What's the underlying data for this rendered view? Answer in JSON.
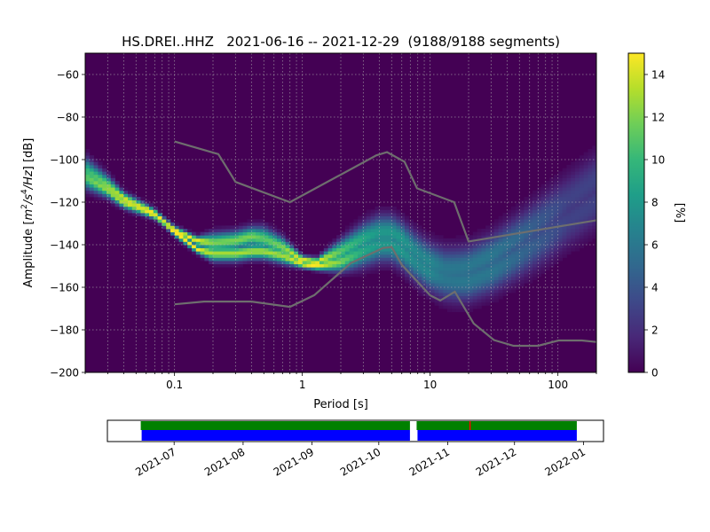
{
  "chart_data": [
    {
      "type": "heatmap",
      "title": "HS.DREI..HHZ   2021-06-16 -- 2021-12-29  (9188/9188 segments)",
      "xlabel": "Period [s]",
      "ylabel": "Amplitude [m²/s⁴/Hz] [dB]",
      "ylabel_parts": {
        "pre": "Amplitude [",
        "m": "m",
        "sup2": "2",
        "mid": "/s",
        "sup4": "4",
        "hz": "/Hz",
        "post": "] [dB]"
      },
      "x_scale": "log",
      "xlim": [
        0.02,
        200
      ],
      "ylim": [
        -200,
        -50
      ],
      "x_ticks": [
        {
          "value": 0.1,
          "label": "0.1"
        },
        {
          "value": 1,
          "label": "1"
        },
        {
          "value": 10,
          "label": "10"
        },
        {
          "value": 100,
          "label": "100"
        }
      ],
      "y_ticks": [
        {
          "value": -60,
          "label": "−60"
        },
        {
          "value": -80,
          "label": "−80"
        },
        {
          "value": -100,
          "label": "−100"
        },
        {
          "value": -120,
          "label": "−120"
        },
        {
          "value": -140,
          "label": "−140"
        },
        {
          "value": -160,
          "label": "−160"
        },
        {
          "value": -180,
          "label": "−180"
        },
        {
          "value": -200,
          "label": "−200"
        }
      ],
      "grid": true,
      "colorbar": {
        "label": "[%]",
        "range": [
          0,
          15
        ],
        "ticks": [
          {
            "value": 0,
            "label": "0"
          },
          {
            "value": 2,
            "label": "2"
          },
          {
            "value": 4,
            "label": "4"
          },
          {
            "value": 6,
            "label": "6"
          },
          {
            "value": 8,
            "label": "8"
          },
          {
            "value": 10,
            "label": "10"
          },
          {
            "value": 12,
            "label": "12"
          },
          {
            "value": 14,
            "label": "14"
          }
        ],
        "colormap": [
          "#440154",
          "#482878",
          "#3e4989",
          "#31688e",
          "#26828e",
          "#1f9e89",
          "#35b779",
          "#6ece58",
          "#b5de2b",
          "#fde725"
        ]
      },
      "ridges": [
        {
          "period": [
            0.02,
            0.03,
            0.04,
            0.05,
            0.07,
            0.1,
            0.15,
            0.2,
            0.3,
            0.4,
            0.5,
            0.7,
            1.0,
            1.3,
            2.0,
            3.0,
            4.0,
            5.0,
            6.0,
            8.0,
            10.0,
            13.0,
            16.0,
            20.0,
            30.0,
            50.0,
            80.0,
            120.0,
            200.0
          ],
          "amplitude": [
            -108,
            -114,
            -120,
            -122,
            -126,
            -133,
            -138,
            -139,
            -138,
            -136,
            -137,
            -141,
            -147,
            -148,
            -143,
            -137,
            -134,
            -134,
            -137,
            -144,
            -148,
            -151,
            -151,
            -150,
            -145,
            -136,
            -127,
            -119,
            -109
          ],
          "peak_percent": [
            11,
            13,
            14,
            14,
            15,
            15,
            15,
            12,
            12,
            12,
            11,
            12,
            15,
            15,
            11,
            9,
            8,
            8,
            8,
            7,
            7,
            6,
            6,
            6,
            6,
            5,
            4,
            3,
            3
          ]
        },
        {
          "period": [
            0.02,
            0.03,
            0.04,
            0.05,
            0.07,
            0.1,
            0.15,
            0.2,
            0.3,
            0.4,
            0.5,
            0.7,
            1.0,
            1.3,
            2.0,
            3.0,
            4.0,
            5.0,
            6.0,
            8.0,
            10.0,
            13.0,
            16.0,
            20.0,
            30.0,
            50.0,
            80.0,
            120.0,
            200.0
          ],
          "amplitude": [
            -105,
            -112,
            -118,
            -121,
            -125,
            -134,
            -142,
            -144,
            -144,
            -143,
            -143,
            -145,
            -149,
            -150,
            -148,
            -143,
            -140,
            -140,
            -143,
            -149,
            -153,
            -156,
            -157,
            -157,
            -153,
            -145,
            -137,
            -129,
            -120
          ],
          "peak_percent": [
            10,
            12,
            14,
            14,
            15,
            15,
            15,
            13,
            13,
            13,
            13,
            13,
            15,
            15,
            12,
            9,
            8,
            8,
            8,
            7,
            7,
            6,
            6,
            6,
            6,
            5,
            4,
            3,
            3
          ]
        }
      ],
      "reference_curves": [
        {
          "period": [
            0.1,
            0.22,
            0.3,
            0.8,
            3.8,
            4.6,
            6.3,
            7.9,
            15.4,
            20.0,
            200.0
          ],
          "amplitude": [
            -91.5,
            -97.4,
            -110.5,
            -120.0,
            -98.0,
            -96.5,
            -101.0,
            -113.5,
            -120.0,
            -138.5,
            -128.5
          ]
        },
        {
          "period": [
            0.1,
            0.17,
            0.4,
            0.8,
            1.24,
            2.4,
            4.3,
            5.0,
            6.0,
            10.0,
            12.0,
            15.6,
            21.9,
            31.6,
            45.0,
            70.0,
            101.0,
            154.0,
            200.0
          ],
          "amplitude": [
            -168.0,
            -166.7,
            -166.7,
            -169.2,
            -163.7,
            -148.6,
            -141.5,
            -141.1,
            -149.4,
            -163.8,
            -166.2,
            -162.1,
            -177.0,
            -184.8,
            -187.5,
            -187.5,
            -185.0,
            -185.0,
            -185.7
          ]
        }
      ]
    },
    {
      "type": "timeline",
      "xlim": [
        "2021-06-01",
        "2022-01-10"
      ],
      "x_ticks": [
        "2021-07",
        "2021-08",
        "2021-09",
        "2021-10",
        "2021-11",
        "2021-12",
        "2022-01"
      ],
      "coverage_segments": [
        {
          "start": "2021-06-16",
          "end": "2021-10-15",
          "color": "#008000"
        },
        {
          "start": "2021-10-18",
          "end": "2021-12-29",
          "color": "#008000"
        }
      ],
      "data_segments": [
        {
          "start": "2021-06-16",
          "end": "2021-10-15",
          "color": "#0000ff"
        },
        {
          "start": "2021-10-18",
          "end": "2021-12-29",
          "color": "#0000ff"
        }
      ],
      "markers": [
        {
          "date": "2021-11-11",
          "color": "#ff0000"
        }
      ]
    }
  ]
}
